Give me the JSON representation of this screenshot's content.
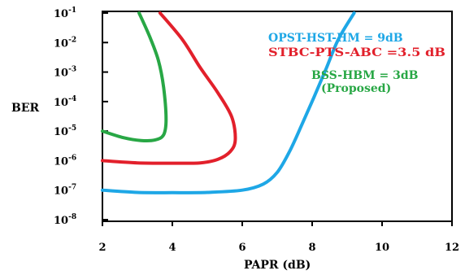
{
  "chart_data": {
    "type": "line",
    "xlabel": "PAPR (dB)",
    "ylabel": "BER",
    "xlim": [
      2,
      12
    ],
    "x_ticks": [
      2,
      4,
      6,
      8,
      10,
      12
    ],
    "x_tick_labels": [
      "2",
      "4",
      "6",
      "8",
      "10",
      "12"
    ],
    "y_scale": "log",
    "y_ticks": [
      {
        "base": "10",
        "exp": "-8"
      },
      {
        "base": "10",
        "exp": "-7"
      },
      {
        "base": "10",
        "exp": "-6"
      },
      {
        "base": "10",
        "exp": "-5"
      },
      {
        "base": "10",
        "exp": "-4"
      },
      {
        "base": "10",
        "exp": "-3"
      },
      {
        "base": "10",
        "exp": "-2"
      },
      {
        "base": "10",
        "exp": "-1"
      }
    ],
    "grid": false,
    "legend_position": "top-right, inline annotations",
    "series": [
      {
        "name": "OPST-HST-HM = 9dB",
        "color": "#1ea7e6",
        "points": [
          [
            2.0,
            1e-07
          ],
          [
            3.0,
            8.4e-08
          ],
          [
            4.0,
            8.2e-08
          ],
          [
            5.0,
            8.4e-08
          ],
          [
            6.0,
            1e-07
          ],
          [
            6.6,
            1.6e-07
          ],
          [
            7.0,
            4e-07
          ],
          [
            7.35,
            2e-06
          ],
          [
            7.7,
            1.6e-05
          ],
          [
            8.05,
            0.00014
          ],
          [
            8.4,
            0.0013
          ],
          [
            8.75,
            0.013
          ],
          [
            9.2,
            0.1
          ]
        ]
      },
      {
        "name": "STBC-PTS-ABC =3.5 dB",
        "color": "#e2202b",
        "points": [
          [
            2.0,
            1e-06
          ],
          [
            3.0,
            8.4e-07
          ],
          [
            4.0,
            8.2e-07
          ],
          [
            4.8,
            8.4e-07
          ],
          [
            5.3,
            1.1e-06
          ],
          [
            5.65,
            2e-06
          ],
          [
            5.8,
            5e-06
          ],
          [
            5.7,
            3e-05
          ],
          [
            5.3,
            0.0002
          ],
          [
            4.8,
            0.0014
          ],
          [
            4.3,
            0.012
          ],
          [
            3.65,
            0.1
          ]
        ]
      },
      {
        "name": "BSS-HBM = 3dB",
        "color": "#28a745",
        "points": [
          [
            2.0,
            1e-05
          ],
          [
            2.6,
            6e-06
          ],
          [
            3.1,
            4.8e-06
          ],
          [
            3.5,
            5e-06
          ],
          [
            3.75,
            7.5e-06
          ],
          [
            3.82,
            2.5e-05
          ],
          [
            3.75,
            0.0003
          ],
          [
            3.6,
            0.0025
          ],
          [
            3.35,
            0.016
          ],
          [
            3.05,
            0.1
          ]
        ]
      }
    ],
    "annotations": [
      {
        "text": "OPST-HST-HM = 9dB",
        "color": "#1ea7e6"
      },
      {
        "text": "STBC-PTS-ABC =3.5 dB",
        "color": "#e2202b"
      },
      {
        "text": "BSS-HBM = 3dB",
        "color": "#28a745"
      },
      {
        "text": "(Proposed)",
        "color": "#28a745"
      }
    ]
  }
}
